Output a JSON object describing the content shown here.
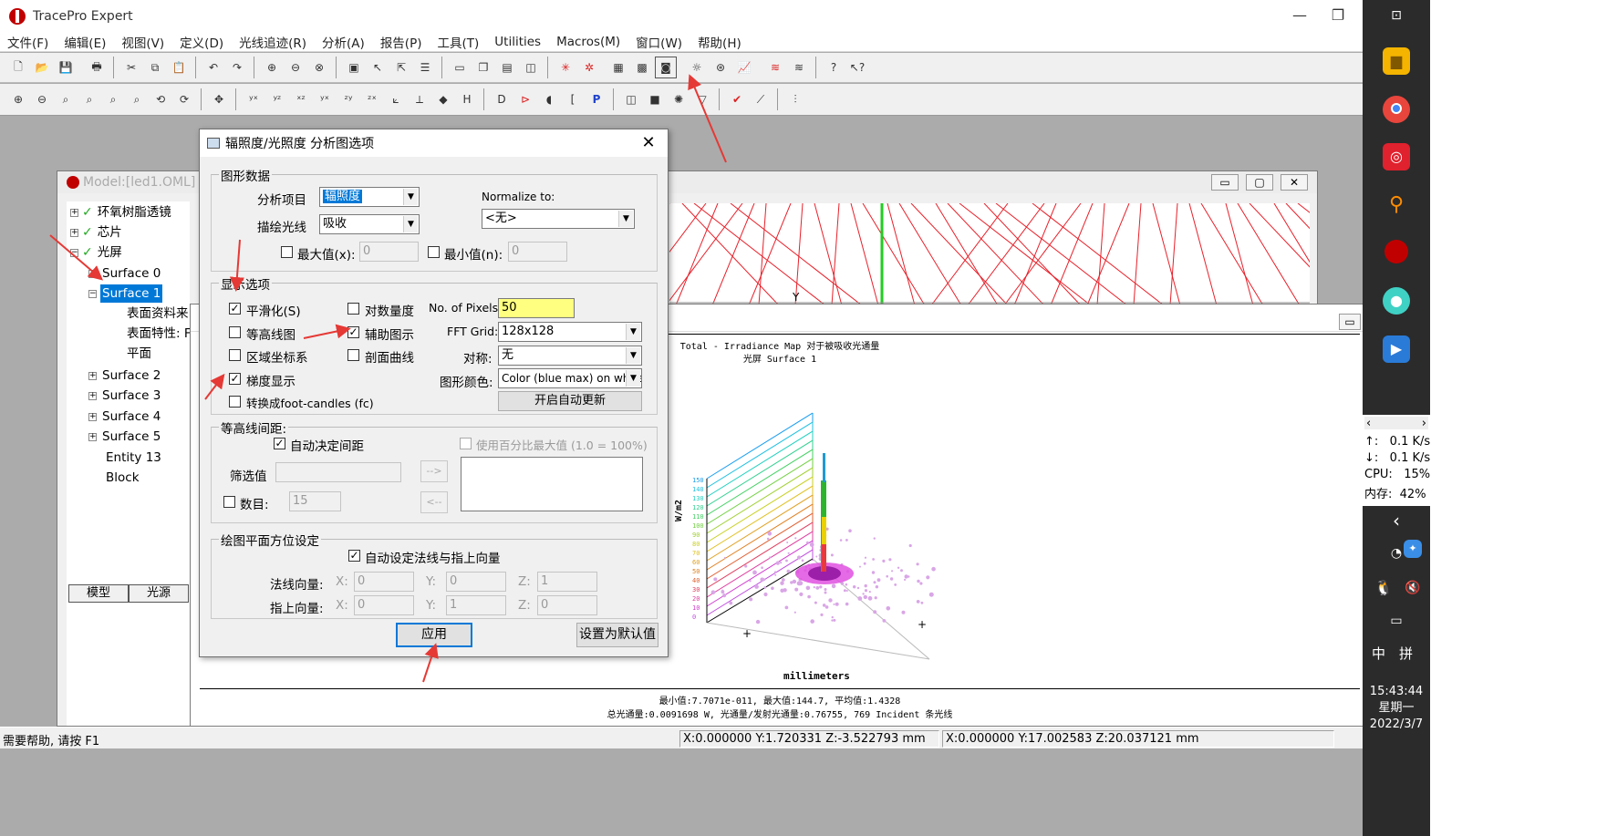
{
  "app": {
    "title": "TracePro Expert",
    "menu": [
      "文件(F)",
      "编辑(E)",
      "视图(V)",
      "定义(D)",
      "光线追迹(R)",
      "分析(A)",
      "报告(P)",
      "工具(T)",
      "Utilities",
      "Macros(M)",
      "窗口(W)",
      "帮助(H)"
    ],
    "window_controls": {
      "minimize": "—",
      "restore": "❐"
    }
  },
  "status": {
    "help": "需要帮助, 请按 F1",
    "coord1": "X:0.000000 Y:1.720331 Z:-3.522793 mm",
    "coord2": "X:0.000000 Y:17.002583 Z:20.037121 mm"
  },
  "model_window": {
    "title": "Model:[led1.OML]",
    "tree": [
      {
        "label": "环氧树脂透镜",
        "expander": "+",
        "check": true
      },
      {
        "label": "芯片",
        "expander": "+",
        "check": true
      },
      {
        "label": "光屏",
        "expander": "-",
        "check": true
      },
      {
        "label": "Surface 0",
        "expander": "+"
      },
      {
        "label": "Surface 1",
        "expander": "-",
        "selected": true
      },
      {
        "label": "表面资料来"
      },
      {
        "label": "表面特性: F"
      },
      {
        "label": "平面"
      },
      {
        "label": "Surface 2",
        "expander": "+"
      },
      {
        "label": "Surface 3",
        "expander": "+"
      },
      {
        "label": "Surface 4",
        "expander": "+"
      },
      {
        "label": "Surface 5",
        "expander": "+"
      },
      {
        "label": "Entity 13"
      },
      {
        "label": "Block"
      }
    ],
    "tabs": [
      "模型",
      "光源"
    ],
    "axis_label": "Y"
  },
  "irradiance_window": {
    "title_line1": "Total - Irradiance Map 对于被吸收光通量",
    "title_line2": "光屏 Surface 1",
    "ylabel": "W/m2",
    "xlabel": "millimeters",
    "z_ticks": [
      "150",
      "140",
      "130",
      "120",
      "110",
      "100",
      "90",
      "80",
      "70",
      "60",
      "50",
      "40",
      "30",
      "20",
      "10",
      "0"
    ],
    "footer_line1": "最小值:7.7071e-011, 最大值:144.7, 平均值:1.4328",
    "footer_line2": "总光通量:0.0091698 W, 光通量/发射光通量:0.76755, 769 Incident 条光线"
  },
  "dialog": {
    "title": "辐照度/光照度 分析图选项",
    "close": "✕",
    "graph_data": {
      "group": "图形数据",
      "analysis_item_label": "分析项目",
      "analysis_item_value": "辐照度",
      "ray_label": "描绘光线",
      "ray_value": "吸收",
      "normalize_label": "Normalize to:",
      "normalize_value": "<无>",
      "max_label": "最大值(x):",
      "max_value": "0",
      "min_label": "最小值(n):",
      "min_value": "0"
    },
    "display": {
      "group": "显示选项",
      "smooth": "平滑化(S)",
      "log_scale": "对数量度",
      "contour": "等高线图",
      "aux_display": "辅助图示",
      "region_coords": "区域坐标系",
      "profile_curve": "剖面曲线",
      "gradient": "梯度显示",
      "footcandles": "转换成foot-candles (fc)",
      "pixels_label": "No. of Pixels:",
      "pixels_value": "50",
      "fft_label": "FFT Grid:",
      "fft_value": "128x128",
      "symmetry_label": "对称:",
      "symmetry_value": "无",
      "color_label": "图形颜色:",
      "color_value": "Color (blue max) on white",
      "auto_update": "开启自动更新"
    },
    "contour_spacing": {
      "group": "等高线间距:",
      "auto": "自动决定间距",
      "percent": "使用百分比最大值 (1.0 = 100%)",
      "filter_label": "筛选值",
      "add_btn": "-->",
      "remove_btn": "<--",
      "count_label": "数目:",
      "count_value": "15"
    },
    "plane": {
      "group": "绘图平面方位设定",
      "auto": "自动设定法线与指上向量",
      "normal_label": "法线向量:",
      "up_label": "指上向量:",
      "normal": {
        "x": "0",
        "y": "0",
        "z": "1"
      },
      "up": {
        "x": "0",
        "y": "1",
        "z": "0"
      },
      "x": "X:",
      "y": "Y:",
      "z": "Z:"
    },
    "apply": "应用",
    "set_default": "设置为默认值"
  },
  "taskbar": {
    "net_up": "0.1 K/s",
    "net_down": "0.1 K/s",
    "cpu_label": "CPU:",
    "cpu": "15%",
    "mem_label": "内存:",
    "mem": "42%",
    "ime1": "中",
    "ime2": "拼",
    "time": "15:43:44",
    "weekday": "星期一",
    "date": "2022/3/7"
  },
  "colors": {
    "selection": "#0078d7",
    "arrow": "#e53935",
    "rays": "#e8202a",
    "pixels_field": "#ffff80"
  }
}
